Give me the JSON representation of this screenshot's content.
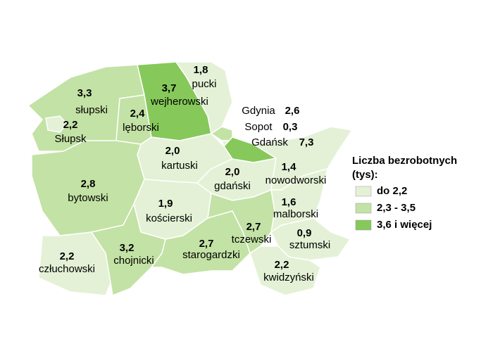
{
  "map": {
    "regions": [
      {
        "name": "słupski",
        "value": 3.3,
        "value_label": "3,3",
        "color": "#c3e2a5"
      },
      {
        "name": "Słupsk",
        "value": 2.2,
        "value_label": "2,2",
        "color": "#e4f1d6"
      },
      {
        "name": "lęborski",
        "value": 2.4,
        "value_label": "2,4",
        "color": "#c3e2a5"
      },
      {
        "name": "wejherowski",
        "value": 3.7,
        "value_label": "3,7",
        "color": "#86c95a"
      },
      {
        "name": "pucki",
        "value": 1.8,
        "value_label": "1,8",
        "color": "#e4f1d6"
      },
      {
        "name": "Gdynia",
        "value": 2.6,
        "value_label": "2,6",
        "color": "#c3e2a5"
      },
      {
        "name": "Sopot",
        "value": 0.3,
        "value_label": "0,3",
        "color": "#e4f1d6"
      },
      {
        "name": "Gdańsk",
        "value": 7.3,
        "value_label": "7,3",
        "color": "#86c95a"
      },
      {
        "name": "kartuski",
        "value": 2.0,
        "value_label": "2,0",
        "color": "#e4f1d6"
      },
      {
        "name": "gdański",
        "value": 2.0,
        "value_label": "2,0",
        "color": "#e4f1d6"
      },
      {
        "name": "nowodworski",
        "value": 1.4,
        "value_label": "1,4",
        "color": "#e4f1d6"
      },
      {
        "name": "bytowski",
        "value": 2.8,
        "value_label": "2,8",
        "color": "#c3e2a5"
      },
      {
        "name": "kościerski",
        "value": 1.9,
        "value_label": "1,9",
        "color": "#e4f1d6"
      },
      {
        "name": "malborski",
        "value": 1.6,
        "value_label": "1,6",
        "color": "#e4f1d6"
      },
      {
        "name": "tczewski",
        "value": 2.7,
        "value_label": "2,7",
        "color": "#c3e2a5"
      },
      {
        "name": "sztumski",
        "value": 0.9,
        "value_label": "0,9",
        "color": "#e4f1d6"
      },
      {
        "name": "człuchowski",
        "value": 2.2,
        "value_label": "2,2",
        "color": "#e4f1d6"
      },
      {
        "name": "chojnicki",
        "value": 3.2,
        "value_label": "3,2",
        "color": "#c3e2a5"
      },
      {
        "name": "starogardzki",
        "value": 2.7,
        "value_label": "2,7",
        "color": "#c3e2a5"
      },
      {
        "name": "kwidzyński",
        "value": 2.2,
        "value_label": "2,2",
        "color": "#e4f1d6"
      }
    ],
    "legend": {
      "title": [
        "Liczba bezrobotnych",
        "(tys):"
      ],
      "items": [
        {
          "label": "do 2,2",
          "color": "#e4f1d6"
        },
        {
          "label": "2,3 - 3,5",
          "color": "#c3e2a5"
        },
        {
          "label": "3,6 i więcej",
          "color": "#86c95a"
        }
      ]
    }
  }
}
